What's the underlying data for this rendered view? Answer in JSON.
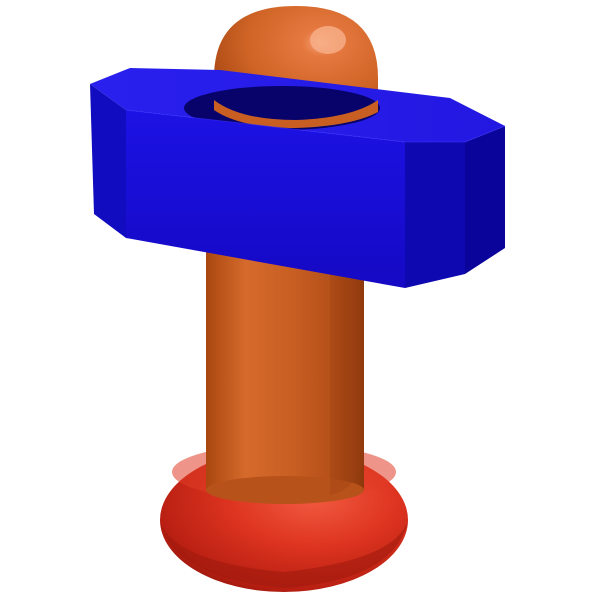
{
  "scene": {
    "object": "pin-with-blue-block",
    "colors": {
      "background": "#ffffff",
      "shaft_light": "#e0763a",
      "shaft_mid": "#c85f22",
      "shaft_dark": "#9a4012",
      "cap_highlight": "#f08a55",
      "base_light": "#f0482e",
      "base_mid": "#d22c1c",
      "base_dark": "#9e180e",
      "block_top": "#2a26f0",
      "block_front": "#1a10d8",
      "block_side": "#0d06a8",
      "block_hole": "#07035e"
    }
  }
}
